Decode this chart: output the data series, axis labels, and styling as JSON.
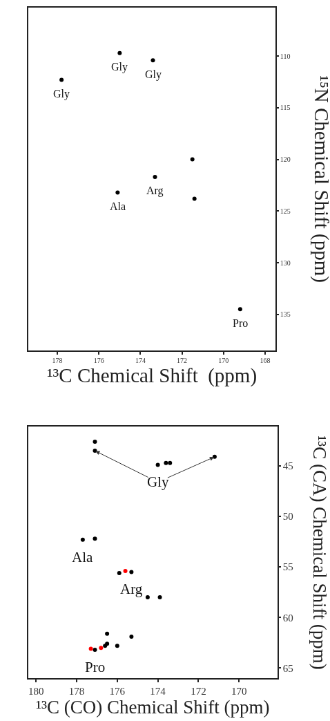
{
  "chart_data": [
    {
      "type": "scatter",
      "xlabel": "¹³C Chemical Shift  (ppm)",
      "ylabel": "¹⁵N Chemical Shift (ppm)",
      "xlim": [
        179.4,
        167.5
      ],
      "ylim": [
        138.5,
        105.3
      ],
      "xticks": [
        178,
        176,
        174,
        172,
        170,
        168
      ],
      "yticks": [
        110,
        115,
        120,
        125,
        130,
        135
      ],
      "marker": "circle",
      "series": [
        {
          "color": "#000000",
          "x": [
            175.0,
            173.4,
            177.8,
            171.5,
            173.3,
            175.1,
            171.4,
            169.2
          ],
          "values": [
            109.7,
            110.4,
            112.3,
            120.0,
            121.7,
            123.2,
            123.8,
            134.5
          ]
        }
      ],
      "annotations": [
        {
          "text": "Gly",
          "x": 175.0,
          "y": 109.7
        },
        {
          "text": "Gly",
          "x": 173.4,
          "y": 110.4
        },
        {
          "text": "Gly",
          "x": 177.8,
          "y": 112.3
        },
        {
          "text": "Arg",
          "x": 173.3,
          "y": 121.7
        },
        {
          "text": "Ala",
          "x": 175.1,
          "y": 123.2
        },
        {
          "text": "Pro",
          "x": 169.2,
          "y": 134.5
        }
      ]
    },
    {
      "type": "scatter",
      "xlabel": "¹³C (CO) Chemical Shift (ppm)",
      "ylabel": "¹³C (CA) Chemical Shift (ppm)",
      "xlim": [
        180.4,
        168.1
      ],
      "ylim": [
        66.0,
        41.1
      ],
      "xticks": [
        180,
        178,
        176,
        174,
        172,
        170
      ],
      "yticks": [
        45,
        50,
        55,
        60,
        65
      ],
      "marker": "circle",
      "series": [
        {
          "color": "#000000",
          "x": [
            177.1,
            177.1,
            171.2,
            174.0,
            173.6,
            173.4,
            177.7,
            177.1,
            175.9,
            175.3,
            174.5,
            173.9,
            176.5,
            175.3,
            176.5,
            176.6,
            176.0,
            177.1
          ],
          "values": [
            42.6,
            43.5,
            44.1,
            44.9,
            44.7,
            44.7,
            52.3,
            52.2,
            55.6,
            55.5,
            58.0,
            58.0,
            61.6,
            61.9,
            62.6,
            62.8,
            62.8,
            63.2
          ]
        },
        {
          "color": "#ff0000",
          "x": [
            175.6,
            177.3,
            176.8
          ],
          "values": [
            55.4,
            63.1,
            63.0
          ]
        }
      ],
      "annotations": [
        {
          "text": "Gly",
          "x": 174.0,
          "y": 44.9
        },
        {
          "text": "Ala",
          "x": 177.7,
          "y": 52.3
        },
        {
          "text": "Arg",
          "x": 175.3,
          "y": 55.5
        },
        {
          "text": "Pro",
          "x": 177.1,
          "y": 63.2
        }
      ]
    }
  ]
}
